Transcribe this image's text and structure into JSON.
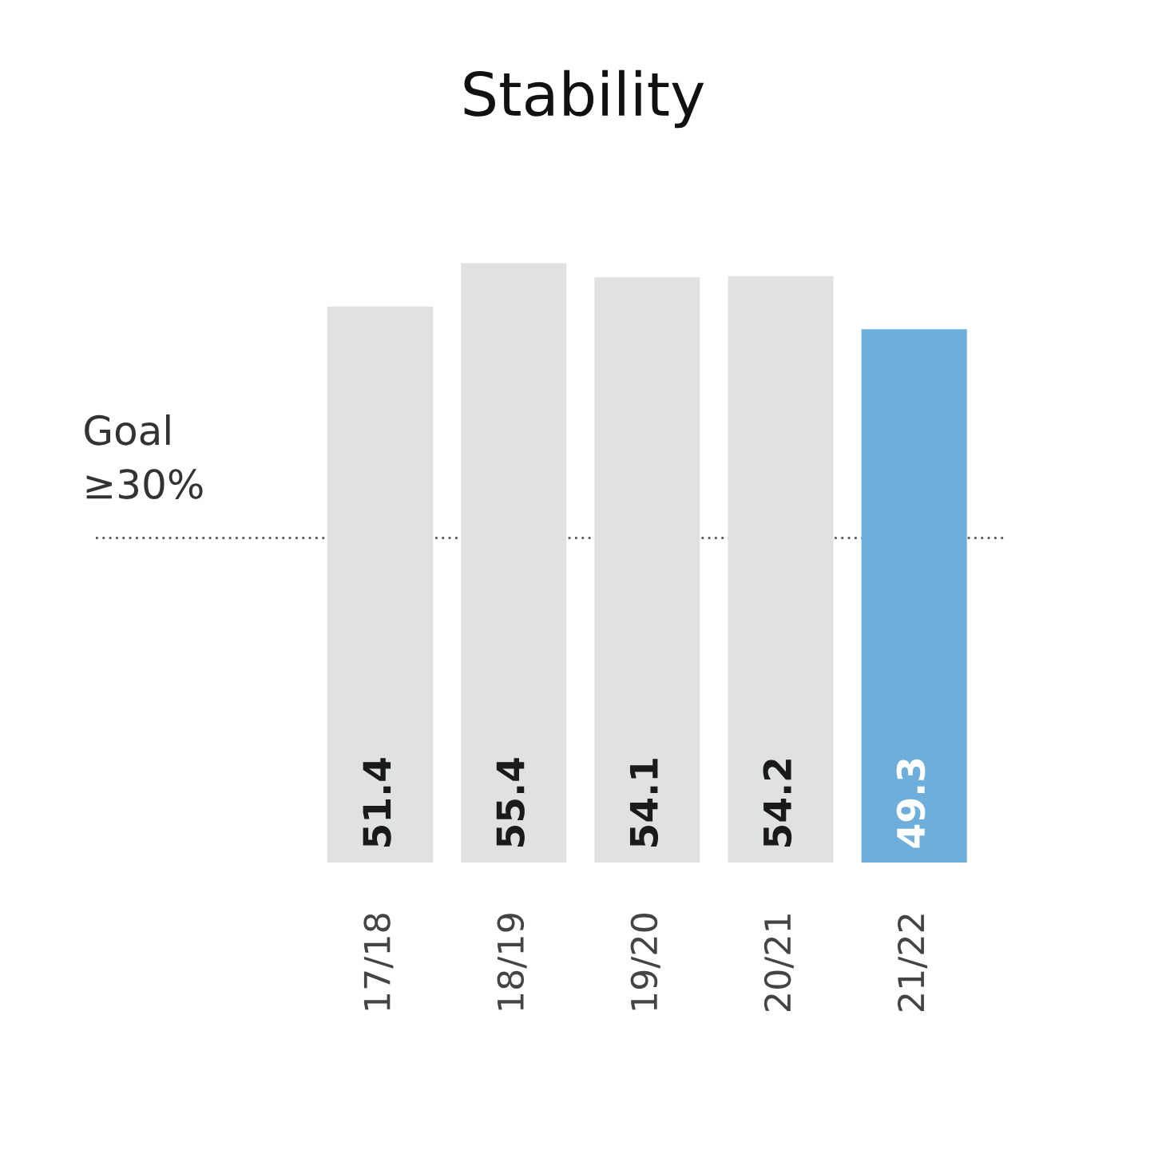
{
  "chart_data": {
    "type": "bar",
    "title": "Stability",
    "categories": [
      "17/18",
      "18/19",
      "19/20",
      "20/21",
      "21/22"
    ],
    "values": [
      51.4,
      55.4,
      54.1,
      54.2,
      49.3
    ],
    "colors": [
      "#e0e1e1",
      "#e0e1e1",
      "#e0e1e1",
      "#e0e1e1",
      "#6eaedb"
    ],
    "data_labels": true,
    "ref_lines": [
      {
        "axis": "y",
        "value": 30,
        "label": "Goal\n≥30%",
        "color": "#555555",
        "line_style": "dotted"
      }
    ],
    "tick_labels": "x",
    "grid": false,
    "legend": false
  }
}
